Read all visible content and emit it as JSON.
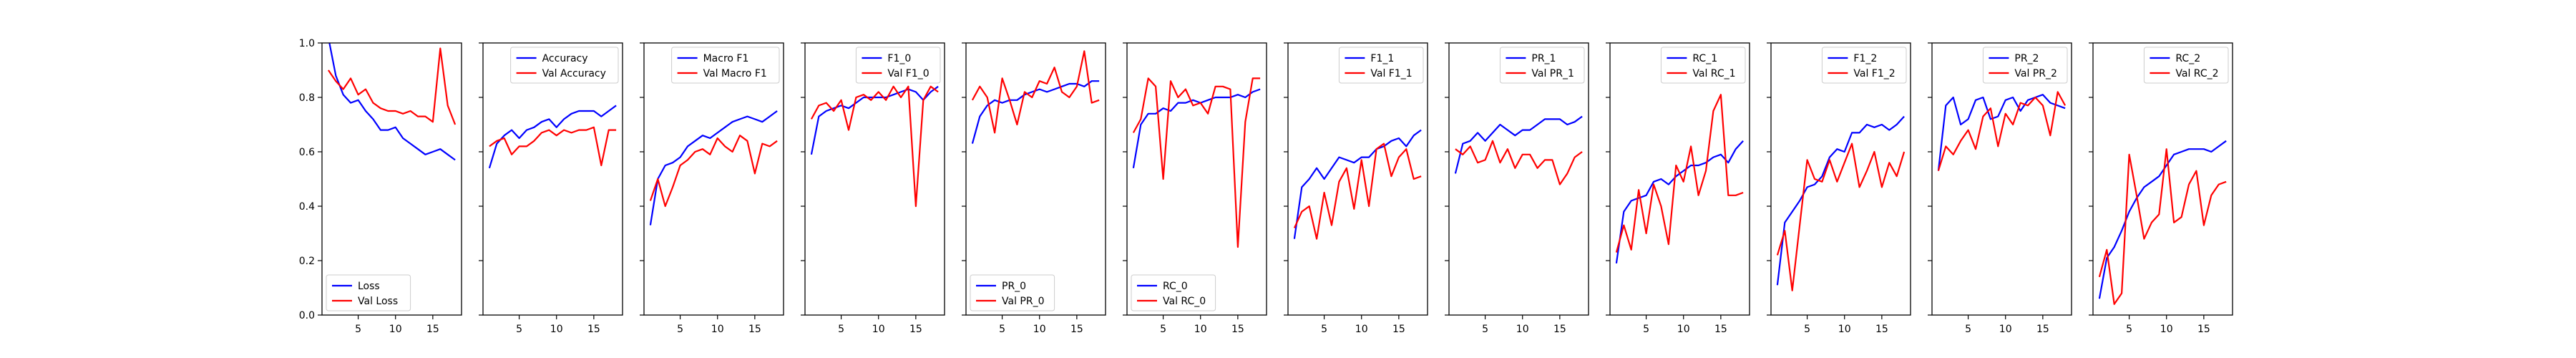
{
  "colors": {
    "train": "#0000ff",
    "val": "#ff0000",
    "frame": "#000000",
    "background": "#ffffff"
  },
  "chart_data": [
    {
      "type": "line",
      "legend_position": "lower-left",
      "x": [
        1,
        2,
        3,
        4,
        5,
        6,
        7,
        8,
        9,
        10,
        11,
        12,
        13,
        14,
        15,
        16,
        17,
        18
      ],
      "xticks": [
        5,
        10,
        15
      ],
      "ylim": [
        0,
        1
      ],
      "yticks": [
        "0.0",
        "0.2",
        "0.4",
        "0.6",
        "0.8",
        "1.0"
      ],
      "show_y_ticklabels": true,
      "series": [
        {
          "name": "Loss",
          "color": "#0000ff",
          "values": [
            1.02,
            0.88,
            0.81,
            0.78,
            0.79,
            0.75,
            0.72,
            0.68,
            0.68,
            0.69,
            0.65,
            0.63,
            0.61,
            0.59,
            0.6,
            0.61,
            0.59,
            0.57
          ]
        },
        {
          "name": "Val Loss",
          "color": "#ff0000",
          "values": [
            0.9,
            0.86,
            0.83,
            0.87,
            0.81,
            0.83,
            0.78,
            0.76,
            0.75,
            0.75,
            0.74,
            0.75,
            0.73,
            0.73,
            0.71,
            0.98,
            0.77,
            0.7
          ]
        }
      ]
    },
    {
      "type": "line",
      "legend_position": "upper-right",
      "x": [
        1,
        2,
        3,
        4,
        5,
        6,
        7,
        8,
        9,
        10,
        11,
        12,
        13,
        14,
        15,
        16,
        17,
        18
      ],
      "xticks": [
        5,
        10,
        15
      ],
      "ylim": [
        0,
        1
      ],
      "show_y_ticklabels": false,
      "series": [
        {
          "name": "Accuracy",
          "color": "#0000ff",
          "values": [
            0.54,
            0.63,
            0.66,
            0.68,
            0.65,
            0.68,
            0.69,
            0.71,
            0.72,
            0.69,
            0.72,
            0.74,
            0.75,
            0.75,
            0.75,
            0.73,
            0.75,
            0.77
          ]
        },
        {
          "name": "Val Accuracy",
          "color": "#ff0000",
          "values": [
            0.62,
            0.64,
            0.65,
            0.59,
            0.62,
            0.62,
            0.64,
            0.67,
            0.68,
            0.66,
            0.68,
            0.67,
            0.68,
            0.68,
            0.69,
            0.55,
            0.68,
            0.68
          ]
        }
      ]
    },
    {
      "type": "line",
      "legend_position": "upper-right",
      "x": [
        1,
        2,
        3,
        4,
        5,
        6,
        7,
        8,
        9,
        10,
        11,
        12,
        13,
        14,
        15,
        16,
        17,
        18
      ],
      "xticks": [
        5,
        10,
        15
      ],
      "ylim": [
        0,
        1
      ],
      "show_y_ticklabels": false,
      "series": [
        {
          "name": "Macro F1",
          "color": "#0000ff",
          "values": [
            0.33,
            0.5,
            0.55,
            0.56,
            0.58,
            0.62,
            0.64,
            0.66,
            0.65,
            0.67,
            0.69,
            0.71,
            0.72,
            0.73,
            0.72,
            0.71,
            0.73,
            0.75
          ]
        },
        {
          "name": "Val Macro F1",
          "color": "#ff0000",
          "values": [
            0.42,
            0.5,
            0.4,
            0.47,
            0.55,
            0.57,
            0.6,
            0.61,
            0.59,
            0.65,
            0.62,
            0.6,
            0.66,
            0.64,
            0.52,
            0.63,
            0.62,
            0.64
          ]
        }
      ]
    },
    {
      "type": "line",
      "legend_position": "upper-right",
      "x": [
        1,
        2,
        3,
        4,
        5,
        6,
        7,
        8,
        9,
        10,
        11,
        12,
        13,
        14,
        15,
        16,
        17,
        18
      ],
      "xticks": [
        5,
        10,
        15
      ],
      "ylim": [
        0,
        1
      ],
      "show_y_ticklabels": false,
      "series": [
        {
          "name": "F1_0",
          "color": "#0000ff",
          "values": [
            0.59,
            0.73,
            0.75,
            0.76,
            0.77,
            0.76,
            0.78,
            0.8,
            0.8,
            0.8,
            0.8,
            0.81,
            0.82,
            0.83,
            0.82,
            0.79,
            0.82,
            0.84
          ]
        },
        {
          "name": "Val F1_0",
          "color": "#ff0000",
          "values": [
            0.72,
            0.77,
            0.78,
            0.75,
            0.79,
            0.68,
            0.8,
            0.81,
            0.79,
            0.82,
            0.79,
            0.84,
            0.8,
            0.84,
            0.4,
            0.79,
            0.84,
            0.82
          ]
        }
      ]
    },
    {
      "type": "line",
      "legend_position": "lower-left",
      "x": [
        1,
        2,
        3,
        4,
        5,
        6,
        7,
        8,
        9,
        10,
        11,
        12,
        13,
        14,
        15,
        16,
        17,
        18
      ],
      "xticks": [
        5,
        10,
        15
      ],
      "ylim": [
        0,
        1
      ],
      "show_y_ticklabels": false,
      "series": [
        {
          "name": "PR_0",
          "color": "#0000ff",
          "values": [
            0.63,
            0.73,
            0.77,
            0.79,
            0.78,
            0.79,
            0.79,
            0.81,
            0.82,
            0.83,
            0.82,
            0.83,
            0.84,
            0.85,
            0.85,
            0.84,
            0.86,
            0.86
          ]
        },
        {
          "name": "Val PR_0",
          "color": "#ff0000",
          "values": [
            0.79,
            0.84,
            0.8,
            0.67,
            0.87,
            0.79,
            0.7,
            0.82,
            0.8,
            0.86,
            0.85,
            0.91,
            0.82,
            0.8,
            0.84,
            0.97,
            0.78,
            0.79
          ]
        }
      ]
    },
    {
      "type": "line",
      "legend_position": "lower-left",
      "x": [
        1,
        2,
        3,
        4,
        5,
        6,
        7,
        8,
        9,
        10,
        11,
        12,
        13,
        14,
        15,
        16,
        17,
        18
      ],
      "xticks": [
        5,
        10,
        15
      ],
      "ylim": [
        0,
        1
      ],
      "show_y_ticklabels": false,
      "series": [
        {
          "name": "RC_0",
          "color": "#0000ff",
          "values": [
            0.54,
            0.7,
            0.74,
            0.74,
            0.76,
            0.75,
            0.78,
            0.78,
            0.79,
            0.78,
            0.79,
            0.8,
            0.8,
            0.8,
            0.81,
            0.8,
            0.82,
            0.83
          ]
        },
        {
          "name": "Val RC_0",
          "color": "#ff0000",
          "values": [
            0.67,
            0.72,
            0.87,
            0.84,
            0.5,
            0.86,
            0.8,
            0.83,
            0.77,
            0.78,
            0.74,
            0.84,
            0.84,
            0.83,
            0.25,
            0.71,
            0.87,
            0.87
          ]
        }
      ]
    },
    {
      "type": "line",
      "legend_position": "upper-right",
      "x": [
        1,
        2,
        3,
        4,
        5,
        6,
        7,
        8,
        9,
        10,
        11,
        12,
        13,
        14,
        15,
        16,
        17,
        18
      ],
      "xticks": [
        5,
        10,
        15
      ],
      "ylim": [
        0,
        1
      ],
      "show_y_ticklabels": false,
      "series": [
        {
          "name": "F1_1",
          "color": "#0000ff",
          "values": [
            0.28,
            0.47,
            0.5,
            0.54,
            0.5,
            0.54,
            0.58,
            0.57,
            0.56,
            0.58,
            0.58,
            0.61,
            0.62,
            0.64,
            0.65,
            0.62,
            0.66,
            0.68
          ]
        },
        {
          "name": "Val F1_1",
          "color": "#ff0000",
          "values": [
            0.32,
            0.38,
            0.4,
            0.28,
            0.45,
            0.33,
            0.49,
            0.54,
            0.39,
            0.57,
            0.4,
            0.61,
            0.63,
            0.51,
            0.58,
            0.61,
            0.5,
            0.51
          ]
        }
      ]
    },
    {
      "type": "line",
      "legend_position": "upper-right",
      "x": [
        1,
        2,
        3,
        4,
        5,
        6,
        7,
        8,
        9,
        10,
        11,
        12,
        13,
        14,
        15,
        16,
        17,
        18
      ],
      "xticks": [
        5,
        10,
        15
      ],
      "ylim": [
        0,
        1
      ],
      "show_y_ticklabels": false,
      "series": [
        {
          "name": "PR_1",
          "color": "#0000ff",
          "values": [
            0.52,
            0.63,
            0.64,
            0.67,
            0.64,
            0.67,
            0.7,
            0.68,
            0.66,
            0.68,
            0.68,
            0.7,
            0.72,
            0.72,
            0.72,
            0.7,
            0.71,
            0.73
          ]
        },
        {
          "name": "Val PR_1",
          "color": "#ff0000",
          "values": [
            0.61,
            0.59,
            0.62,
            0.56,
            0.57,
            0.64,
            0.56,
            0.61,
            0.54,
            0.59,
            0.59,
            0.54,
            0.57,
            0.57,
            0.48,
            0.52,
            0.58,
            0.6
          ]
        }
      ]
    },
    {
      "type": "line",
      "legend_position": "upper-right",
      "x": [
        1,
        2,
        3,
        4,
        5,
        6,
        7,
        8,
        9,
        10,
        11,
        12,
        13,
        14,
        15,
        16,
        17,
        18
      ],
      "xticks": [
        5,
        10,
        15
      ],
      "ylim": [
        0,
        1
      ],
      "show_y_ticklabels": false,
      "series": [
        {
          "name": "RC_1",
          "color": "#0000ff",
          "values": [
            0.19,
            0.38,
            0.42,
            0.43,
            0.44,
            0.49,
            0.5,
            0.48,
            0.51,
            0.53,
            0.55,
            0.55,
            0.56,
            0.58,
            0.59,
            0.56,
            0.61,
            0.64
          ]
        },
        {
          "name": "Val RC_1",
          "color": "#ff0000",
          "values": [
            0.23,
            0.33,
            0.24,
            0.46,
            0.3,
            0.48,
            0.4,
            0.26,
            0.55,
            0.49,
            0.62,
            0.44,
            0.53,
            0.75,
            0.81,
            0.44,
            0.44,
            0.45
          ]
        }
      ]
    },
    {
      "type": "line",
      "legend_position": "upper-right",
      "x": [
        1,
        2,
        3,
        4,
        5,
        6,
        7,
        8,
        9,
        10,
        11,
        12,
        13,
        14,
        15,
        16,
        17,
        18
      ],
      "xticks": [
        5,
        10,
        15
      ],
      "ylim": [
        0,
        1
      ],
      "show_y_ticklabels": false,
      "series": [
        {
          "name": "F1_2",
          "color": "#0000ff",
          "values": [
            0.11,
            0.34,
            0.38,
            0.42,
            0.47,
            0.48,
            0.51,
            0.58,
            0.61,
            0.6,
            0.67,
            0.67,
            0.7,
            0.69,
            0.7,
            0.68,
            0.7,
            0.73
          ]
        },
        {
          "name": "Val F1_2",
          "color": "#ff0000",
          "values": [
            0.22,
            0.31,
            0.09,
            0.33,
            0.57,
            0.5,
            0.49,
            0.57,
            0.49,
            0.56,
            0.63,
            0.47,
            0.53,
            0.6,
            0.47,
            0.56,
            0.51,
            0.6
          ]
        }
      ]
    },
    {
      "type": "line",
      "legend_position": "upper-right",
      "x": [
        1,
        2,
        3,
        4,
        5,
        6,
        7,
        8,
        9,
        10,
        11,
        12,
        13,
        14,
        15,
        16,
        17,
        18
      ],
      "xticks": [
        5,
        10,
        15
      ],
      "ylim": [
        0,
        1
      ],
      "show_y_ticklabels": false,
      "series": [
        {
          "name": "PR_2",
          "color": "#0000ff",
          "values": [
            0.53,
            0.77,
            0.8,
            0.7,
            0.72,
            0.79,
            0.8,
            0.72,
            0.73,
            0.79,
            0.8,
            0.75,
            0.79,
            0.8,
            0.81,
            0.78,
            0.77,
            0.76
          ]
        },
        {
          "name": "Val PR_2",
          "color": "#ff0000",
          "values": [
            0.53,
            0.62,
            0.59,
            0.64,
            0.68,
            0.61,
            0.73,
            0.76,
            0.62,
            0.74,
            0.7,
            0.78,
            0.77,
            0.8,
            0.77,
            0.66,
            0.82,
            0.77
          ]
        }
      ]
    },
    {
      "type": "line",
      "legend_position": "upper-right",
      "x": [
        1,
        2,
        3,
        4,
        5,
        6,
        7,
        8,
        9,
        10,
        11,
        12,
        13,
        14,
        15,
        16,
        17,
        18
      ],
      "xticks": [
        5,
        10,
        15
      ],
      "ylim": [
        0,
        1
      ],
      "show_y_ticklabels": false,
      "series": [
        {
          "name": "RC_2",
          "color": "#0000ff",
          "values": [
            0.06,
            0.21,
            0.25,
            0.31,
            0.38,
            0.43,
            0.47,
            0.49,
            0.51,
            0.55,
            0.59,
            0.6,
            0.61,
            0.61,
            0.61,
            0.6,
            0.62,
            0.64
          ]
        },
        {
          "name": "Val RC_2",
          "color": "#ff0000",
          "values": [
            0.14,
            0.24,
            0.04,
            0.08,
            0.59,
            0.44,
            0.28,
            0.34,
            0.37,
            0.61,
            0.34,
            0.36,
            0.48,
            0.53,
            0.33,
            0.44,
            0.48,
            0.49
          ]
        }
      ]
    }
  ]
}
